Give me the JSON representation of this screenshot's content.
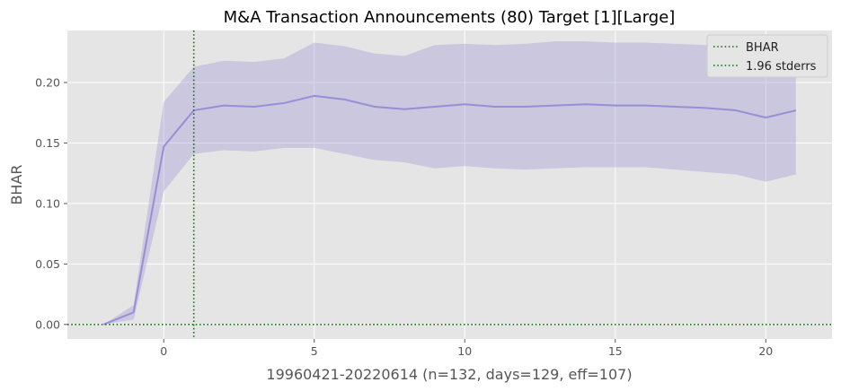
{
  "colors": {
    "figure_background": "#ffffff",
    "plot_background": "#e5e5e5",
    "grid": "#ffffff",
    "series_line": "#988ed5",
    "band_fill": "#988ed5",
    "reference_lines": "#008000",
    "text": "#555555"
  },
  "chart_data": {
    "type": "line",
    "title": "M&A Transaction Announcements (80) Target [1][Large]",
    "xlabel": "19960421-20220614 (n=132, days=129, eff=107)",
    "ylabel": "BHAR",
    "xlim": [
      -3.2,
      22.2
    ],
    "ylim": [
      -0.012,
      0.243
    ],
    "x_ticks": [
      0,
      5,
      10,
      15,
      20
    ],
    "x_tick_labels": [
      "0",
      "5",
      "10",
      "15",
      "20"
    ],
    "y_ticks": [
      0.0,
      0.05,
      0.1,
      0.15,
      0.2
    ],
    "y_tick_labels": [
      "0.00",
      "0.05",
      "0.10",
      "0.15",
      "0.20"
    ],
    "grid": true,
    "legend_position": "top-right",
    "legend": [
      "BHAR",
      "1.96 stderrs"
    ],
    "x": [
      -2,
      -1,
      0,
      1,
      2,
      3,
      4,
      5,
      6,
      7,
      8,
      9,
      10,
      11,
      12,
      13,
      14,
      15,
      16,
      17,
      18,
      19,
      20,
      21
    ],
    "series": [
      {
        "values": [
          0.0,
          0.01,
          0.147,
          0.177,
          0.181,
          0.18,
          0.183,
          0.189,
          0.186,
          0.18,
          0.178,
          0.18,
          0.182,
          0.18,
          0.18,
          0.181,
          0.182,
          0.181,
          0.181,
          0.18,
          0.179,
          0.177,
          0.171,
          0.177
        ],
        "band_upper": [
          0.0,
          0.016,
          0.184,
          0.213,
          0.218,
          0.217,
          0.22,
          0.233,
          0.23,
          0.224,
          0.222,
          0.231,
          0.232,
          0.231,
          0.232,
          0.234,
          0.234,
          0.233,
          0.233,
          0.232,
          0.231,
          0.23,
          0.225,
          0.231
        ],
        "band_lower": [
          0.0,
          0.004,
          0.11,
          0.141,
          0.144,
          0.143,
          0.146,
          0.146,
          0.141,
          0.136,
          0.134,
          0.129,
          0.131,
          0.129,
          0.128,
          0.129,
          0.13,
          0.13,
          0.13,
          0.128,
          0.126,
          0.124,
          0.118,
          0.124
        ]
      }
    ],
    "reference_lines": [
      {
        "orientation": "horizontal",
        "value": 0.0,
        "style": "dotted"
      },
      {
        "orientation": "vertical",
        "value": 1,
        "style": "dotted"
      }
    ]
  }
}
